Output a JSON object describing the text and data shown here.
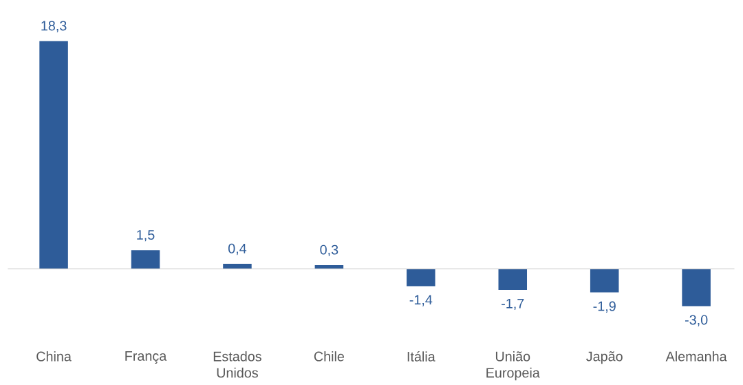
{
  "chart_data": {
    "type": "bar",
    "categories": [
      "China",
      "França",
      "Estados Unidos",
      "Chile",
      "Itália",
      "União Europeia",
      "Japão",
      "Alemanha"
    ],
    "values": [
      18.3,
      1.5,
      0.4,
      0.3,
      -1.4,
      -1.7,
      -1.9,
      -3.0
    ],
    "value_labels": [
      "18,3",
      "1,5",
      "0,4",
      "0,3",
      "-1,4",
      "-1,7",
      "-1,9",
      "-3,0"
    ],
    "color": "#2e5c99"
  }
}
